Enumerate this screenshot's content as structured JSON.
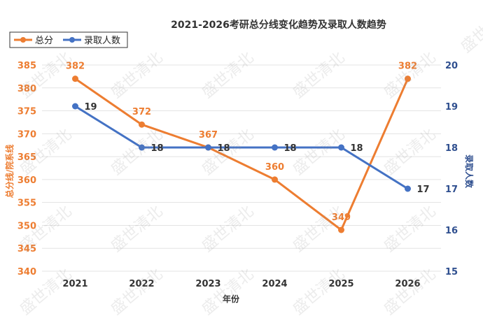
{
  "watermark": "盛世清北",
  "legend": {
    "items": [
      {
        "name": "总分",
        "color": "#ED7D31"
      },
      {
        "name": "录取人数",
        "color": "#4472C4"
      }
    ]
  },
  "chart_data": {
    "type": "line",
    "title": "2021-2026考研总分线变化趋势及录取人数趋势",
    "xlabel": "年份",
    "ylabel_left": "总分线/院系线",
    "ylabel_right": "录取人数",
    "categories": [
      "2021",
      "2022",
      "2023",
      "2024",
      "2025",
      "2026"
    ],
    "ylim_left": [
      340,
      385
    ],
    "yticks_left": [
      340,
      345,
      350,
      355,
      360,
      365,
      370,
      375,
      380,
      385
    ],
    "ylim_right": [
      15,
      20
    ],
    "yticks_right": [
      15,
      16,
      17,
      18,
      19,
      20
    ],
    "grid": true,
    "legend_position": "top-left",
    "series": [
      {
        "name": "总分",
        "axis": "left",
        "color": "#ED7D31",
        "values": [
          382,
          372,
          367,
          360,
          349,
          382
        ]
      },
      {
        "name": "录取人数",
        "axis": "right",
        "color": "#4472C4",
        "values": [
          19,
          18,
          18,
          18,
          18,
          17
        ]
      }
    ]
  }
}
